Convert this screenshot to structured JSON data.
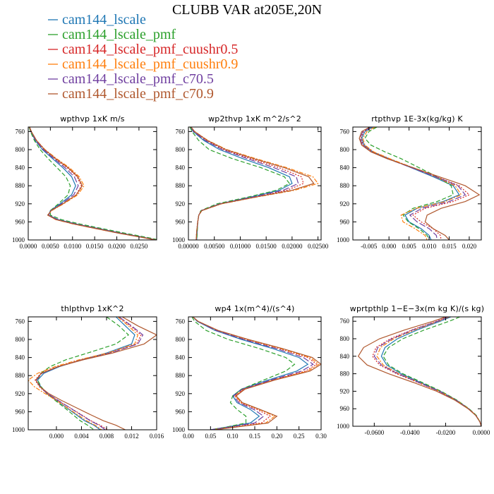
{
  "chart_data": {
    "type": "line",
    "title": "CLUBB VAR at205E,20N",
    "series": [
      {
        "name": "cam144_lscale",
        "color": "#1f77b4",
        "dash": "solid"
      },
      {
        "name": "cam144_lscale_pmf",
        "color": "#2ca02c",
        "dash": "dashed"
      },
      {
        "name": "cam144_lscale_pmf_cuushr0.5",
        "color": "#d62728",
        "dash": "dotted"
      },
      {
        "name": "cam144_lscale_pmf_cuushr0.9",
        "color": "#ff7f0e",
        "dash": "dashdot"
      },
      {
        "name": "cam144_lscale_pmf_c70.5",
        "color": "#7040a0",
        "dash": "longdash"
      },
      {
        "name": "cam144_lscale_pmf_c70.9",
        "color": "#b0582e",
        "dash": "solid"
      }
    ],
    "panels": [
      {
        "title": "wpthvp  1xK m/s",
        "ylim": [
          1000,
          750
        ],
        "yticks": [
          760,
          800,
          840,
          880,
          920,
          960,
          1000
        ],
        "xlim": [
          0,
          0.029
        ],
        "xticks": [
          0,
          0.005,
          0.01,
          0.015,
          0.02,
          0.025
        ],
        "xtick_labels": [
          "0.0000",
          "0.0050",
          "0.0100",
          "0.0150",
          "0.0200",
          "0.0250"
        ],
        "y": [
          750,
          760,
          780,
          800,
          820,
          840,
          860,
          880,
          900,
          920,
          935,
          945,
          955,
          965,
          975,
          985,
          995,
          1000
        ],
        "values": [
          [
            0.0003,
            0.0006,
            0.0016,
            0.0032,
            0.0055,
            0.0078,
            0.0098,
            0.0107,
            0.0098,
            0.0072,
            0.005,
            0.0046,
            0.0068,
            0.011,
            0.016,
            0.021,
            0.0265,
            0.029
          ],
          [
            0.0002,
            0.0005,
            0.0014,
            0.0027,
            0.0045,
            0.0065,
            0.0085,
            0.0095,
            0.009,
            0.0068,
            0.005,
            0.005,
            0.0075,
            0.0118,
            0.0168,
            0.0218,
            0.0272,
            0.0295
          ],
          [
            0.0003,
            0.0007,
            0.0018,
            0.0036,
            0.006,
            0.0088,
            0.011,
            0.012,
            0.0108,
            0.0078,
            0.0052,
            0.0045,
            0.0064,
            0.0105,
            0.0155,
            0.0205,
            0.0262,
            0.0288
          ],
          [
            0.0003,
            0.0007,
            0.0019,
            0.0038,
            0.0064,
            0.0093,
            0.0115,
            0.0126,
            0.0112,
            0.008,
            0.0053,
            0.0044,
            0.0062,
            0.0103,
            0.0153,
            0.0204,
            0.026,
            0.0287
          ],
          [
            0.0003,
            0.0006,
            0.0017,
            0.0034,
            0.0058,
            0.0083,
            0.0104,
            0.0113,
            0.0103,
            0.0075,
            0.0051,
            0.0046,
            0.0066,
            0.0108,
            0.0158,
            0.0208,
            0.0263,
            0.0289
          ],
          [
            0.0003,
            0.0007,
            0.0019,
            0.0037,
            0.0062,
            0.009,
            0.0112,
            0.0122,
            0.0109,
            0.0078,
            0.0052,
            0.0044,
            0.0063,
            0.0104,
            0.0154,
            0.0204,
            0.0261,
            0.0288
          ]
        ]
      },
      {
        "title": "wp2thvp  1xK m^2/s^2",
        "ylim": [
          1000,
          750
        ],
        "yticks": [
          760,
          800,
          840,
          880,
          920,
          960,
          1000
        ],
        "xlim": [
          0,
          0.0256
        ],
        "xticks": [
          0,
          0.005,
          0.01,
          0.015,
          0.02,
          0.025
        ],
        "xtick_labels": [
          "0.00000",
          "0.00500",
          "0.01000",
          "0.01500",
          "0.02000",
          "0.02500"
        ],
        "y": [
          750,
          760,
          780,
          800,
          820,
          840,
          860,
          875,
          890,
          905,
          920,
          935,
          945,
          960,
          980,
          1000
        ],
        "values": [
          [
            0.0004,
            0.0009,
            0.003,
            0.006,
            0.0105,
            0.0155,
            0.0195,
            0.02,
            0.0175,
            0.012,
            0.006,
            0.0025,
            0.002,
            0.0018,
            0.0017,
            0.0016
          ],
          [
            0.0003,
            0.0007,
            0.002,
            0.004,
            0.0085,
            0.014,
            0.0185,
            0.0195,
            0.017,
            0.0115,
            0.0055,
            0.0024,
            0.002,
            0.0018,
            0.0017,
            0.0016
          ],
          [
            0.0005,
            0.0011,
            0.0035,
            0.0068,
            0.012,
            0.0175,
            0.0218,
            0.0222,
            0.019,
            0.0128,
            0.0062,
            0.0025,
            0.002,
            0.0018,
            0.0016,
            0.0015
          ],
          [
            0.0005,
            0.0012,
            0.0038,
            0.0074,
            0.013,
            0.019,
            0.024,
            0.025,
            0.0205,
            0.0132,
            0.0064,
            0.0026,
            0.002,
            0.0018,
            0.0016,
            0.0015
          ],
          [
            0.0005,
            0.001,
            0.0033,
            0.0065,
            0.0114,
            0.0165,
            0.0208,
            0.0212,
            0.0183,
            0.0124,
            0.0061,
            0.0025,
            0.002,
            0.0018,
            0.0016,
            0.0015
          ],
          [
            0.0005,
            0.0012,
            0.0037,
            0.0072,
            0.0126,
            0.0185,
            0.0232,
            0.0242,
            0.02,
            0.013,
            0.0063,
            0.0026,
            0.002,
            0.0018,
            0.0016,
            0.0015
          ]
        ]
      },
      {
        "title": "rtpthvp  1E-3x(kg/kg) K",
        "ylim": [
          1000,
          750
        ],
        "yticks": [
          760,
          800,
          840,
          880,
          920,
          960,
          1000
        ],
        "xlim": [
          -0.009,
          0.023
        ],
        "xticks": [
          -0.005,
          0,
          0.005,
          0.01,
          0.015,
          0.02
        ],
        "xtick_labels": [
          "-0.005",
          "0.000",
          "0.005",
          "0.010",
          "0.015",
          "0.020"
        ],
        "y": [
          750,
          760,
          775,
          790,
          805,
          820,
          840,
          860,
          880,
          900,
          915,
          930,
          945,
          960,
          975,
          990,
          1000
        ],
        "values": [
          [
            -0.004,
            -0.006,
            -0.0068,
            -0.0062,
            -0.004,
            0.0,
            0.0055,
            0.011,
            0.016,
            0.0175,
            0.0135,
            0.007,
            0.004,
            0.005,
            0.008,
            0.01,
            0.0105
          ],
          [
            -0.003,
            -0.005,
            -0.006,
            -0.0045,
            -0.001,
            0.003,
            0.0075,
            0.012,
            0.0155,
            0.016,
            0.012,
            0.006,
            0.0035,
            0.0048,
            0.0075,
            0.0095,
            0.01
          ],
          [
            -0.0045,
            -0.0063,
            -0.007,
            -0.0064,
            -0.0042,
            -0.0002,
            0.0058,
            0.0118,
            0.0175,
            0.02,
            0.016,
            0.009,
            0.006,
            0.008,
            0.011,
            0.0128,
            0.013
          ],
          [
            -0.0035,
            -0.0055,
            -0.0065,
            -0.006,
            -0.0038,
            0.0002,
            0.006,
            0.0115,
            0.0165,
            0.018,
            0.014,
            0.0068,
            0.003,
            0.0035,
            0.0065,
            0.009,
            0.0095
          ],
          [
            -0.0045,
            -0.0065,
            -0.0072,
            -0.0066,
            -0.0044,
            -0.0004,
            0.0056,
            0.0116,
            0.0172,
            0.019,
            0.015,
            0.0082,
            0.0052,
            0.007,
            0.01,
            0.0118,
            0.012
          ],
          [
            -0.0048,
            -0.0068,
            -0.0074,
            -0.0068,
            -0.0045,
            -0.0005,
            0.006,
            0.0125,
            0.019,
            0.0225,
            0.019,
            0.013,
            0.0095,
            0.009,
            0.011,
            0.014,
            0.015
          ]
        ]
      },
      {
        "title": "thlpthvp  1xK^2",
        "ylim": [
          1000,
          750
        ],
        "yticks": [
          760,
          800,
          840,
          880,
          920,
          960,
          1000
        ],
        "xlim": [
          -0.0045,
          0.016
        ],
        "xticks": [
          0,
          0.004,
          0.008,
          0.012,
          0.016
        ],
        "xtick_labels": [
          "0.000",
          "0.004",
          "0.008",
          "0.012",
          "0.016"
        ],
        "y": [
          750,
          770,
          790,
          810,
          830,
          845,
          860,
          875,
          890,
          905,
          920,
          935,
          950,
          965,
          980,
          990,
          1000
        ],
        "values": [
          [
            0.0095,
            0.011,
            0.0125,
            0.012,
            0.008,
            0.004,
            0.0005,
            -0.002,
            -0.003,
            -0.0025,
            -0.0015,
            0.0,
            0.0015,
            0.003,
            0.0045,
            0.006,
            0.007
          ],
          [
            0.008,
            0.01,
            0.0115,
            0.0095,
            0.005,
            0.0015,
            -0.001,
            -0.0025,
            -0.003,
            -0.0024,
            -0.0015,
            -0.0002,
            0.0012,
            0.0025,
            0.0038,
            0.005,
            0.006
          ],
          [
            0.01,
            0.0118,
            0.0135,
            0.0128,
            0.0085,
            0.004,
            0.0002,
            -0.0025,
            -0.0034,
            -0.0027,
            -0.0015,
            0.0002,
            0.002,
            0.0038,
            0.0055,
            0.007,
            0.0082
          ],
          [
            0.0098,
            0.0115,
            0.013,
            0.0125,
            0.0082,
            0.0036,
            -0.0002,
            -0.003,
            -0.0045,
            -0.0035,
            -0.0018,
            0.0,
            0.0016,
            0.0032,
            0.0048,
            0.0062,
            0.0072
          ],
          [
            0.01,
            0.012,
            0.0138,
            0.013,
            0.0086,
            0.0042,
            0.0004,
            -0.0023,
            -0.0032,
            -0.0026,
            -0.0014,
            0.0003,
            0.002,
            0.0037,
            0.0054,
            0.0068,
            0.0078
          ],
          [
            0.0105,
            0.013,
            0.016,
            0.014,
            0.009,
            0.0043,
            0.0003,
            -0.0024,
            -0.0033,
            -0.0026,
            -0.0012,
            0.0008,
            0.003,
            0.0052,
            0.0075,
            0.0095,
            0.011
          ]
        ]
      },
      {
        "title": "wp4  1x(m^4)/(s^4)",
        "ylim": [
          1000,
          750
        ],
        "yticks": [
          760,
          800,
          840,
          880,
          920,
          960,
          1000
        ],
        "xlim": [
          0,
          0.3
        ],
        "xticks": [
          0,
          0.05,
          0.1,
          0.15,
          0.2,
          0.25,
          0.3
        ],
        "xtick_labels": [
          "0.00",
          "0.05",
          "0.10",
          "0.15",
          "0.20",
          "0.25",
          "0.30"
        ],
        "y": [
          750,
          760,
          780,
          800,
          820,
          840,
          855,
          870,
          890,
          910,
          925,
          940,
          955,
          970,
          985,
          995,
          1000
        ],
        "values": [
          [
            0.01,
            0.02,
            0.06,
            0.12,
            0.19,
            0.25,
            0.27,
            0.245,
            0.18,
            0.12,
            0.1,
            0.11,
            0.14,
            0.16,
            0.14,
            0.08,
            0.05
          ],
          [
            0.008,
            0.014,
            0.04,
            0.09,
            0.16,
            0.22,
            0.24,
            0.22,
            0.17,
            0.12,
            0.1,
            0.095,
            0.11,
            0.13,
            0.13,
            0.08,
            0.05
          ],
          [
            0.01,
            0.022,
            0.065,
            0.13,
            0.205,
            0.27,
            0.29,
            0.265,
            0.19,
            0.125,
            0.105,
            0.118,
            0.155,
            0.185,
            0.165,
            0.09,
            0.055
          ],
          [
            0.01,
            0.022,
            0.066,
            0.132,
            0.208,
            0.275,
            0.295,
            0.27,
            0.192,
            0.126,
            0.106,
            0.12,
            0.16,
            0.195,
            0.175,
            0.095,
            0.055
          ],
          [
            0.01,
            0.021,
            0.062,
            0.125,
            0.198,
            0.26,
            0.282,
            0.256,
            0.186,
            0.122,
            0.102,
            0.114,
            0.148,
            0.17,
            0.15,
            0.085,
            0.05
          ],
          [
            0.01,
            0.022,
            0.067,
            0.135,
            0.212,
            0.28,
            0.3,
            0.275,
            0.195,
            0.128,
            0.108,
            0.122,
            0.162,
            0.2,
            0.18,
            0.1,
            0.06
          ]
        ]
      },
      {
        "title": "wprtpthlp  1−E−3x(m kg K)/(s kg)",
        "ylim": [
          1000,
          750
        ],
        "yticks": [
          760,
          800,
          840,
          880,
          920,
          960,
          1000
        ],
        "xlim": [
          -0.072,
          0.0
        ],
        "xticks": [
          -0.06,
          -0.04,
          -0.02,
          0
        ],
        "xtick_labels": [
          "-0.0600",
          "-0.0400",
          "-0.0200",
          "0.0000"
        ],
        "y": [
          750,
          760,
          780,
          800,
          820,
          840,
          860,
          880,
          900,
          920,
          940,
          960,
          975,
          990,
          1000
        ],
        "values": [
          [
            -0.017,
            -0.023,
            -0.036,
            -0.047,
            -0.054,
            -0.056,
            -0.053,
            -0.045,
            -0.034,
            -0.023,
            -0.014,
            -0.007,
            -0.003,
            -0.0008,
            0.0
          ],
          [
            -0.012,
            -0.018,
            -0.032,
            -0.044,
            -0.052,
            -0.055,
            -0.052,
            -0.044,
            -0.033,
            -0.0225,
            -0.0138,
            -0.0068,
            -0.0028,
            -0.0007,
            0.0
          ],
          [
            -0.019,
            -0.025,
            -0.039,
            -0.051,
            -0.059,
            -0.061,
            -0.057,
            -0.0475,
            -0.0355,
            -0.0238,
            -0.0145,
            -0.0072,
            -0.0031,
            -0.0008,
            0.0
          ],
          [
            -0.018,
            -0.024,
            -0.0375,
            -0.049,
            -0.0565,
            -0.0585,
            -0.055,
            -0.0462,
            -0.0348,
            -0.0234,
            -0.0142,
            -0.0071,
            -0.003,
            -0.0008,
            0.0
          ],
          [
            -0.0185,
            -0.0245,
            -0.0385,
            -0.05,
            -0.058,
            -0.06,
            -0.056,
            -0.0468,
            -0.035,
            -0.0236,
            -0.0144,
            -0.0072,
            -0.0031,
            -0.0008,
            0.0
          ],
          [
            -0.02,
            -0.027,
            -0.043,
            -0.057,
            -0.066,
            -0.069,
            -0.064,
            -0.052,
            -0.038,
            -0.025,
            -0.015,
            -0.0074,
            -0.0032,
            -0.0008,
            0.0
          ]
        ]
      }
    ]
  }
}
